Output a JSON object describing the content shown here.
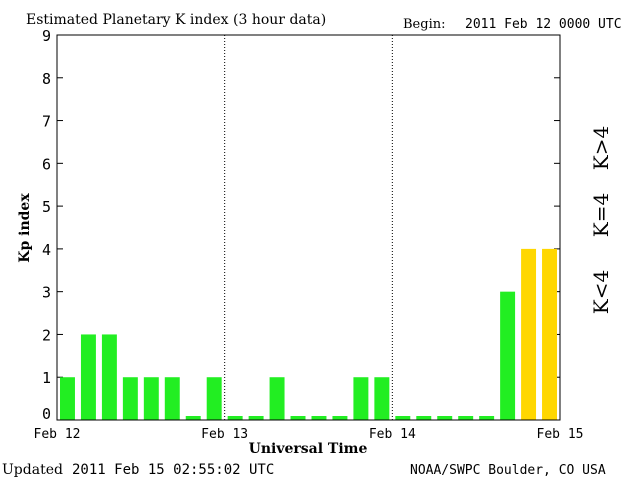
{
  "chart_data": {
    "type": "bar",
    "title": "Estimated Planetary K index (3 hour data)",
    "begin_label": "Begin:",
    "begin_value": "2011 Feb 12 0000 UTC",
    "ylabel": "Kp index",
    "xlabel": "Universal Time",
    "ylim": [
      0,
      9
    ],
    "yticks": [
      "0",
      "1",
      "2",
      "3",
      "4",
      "5",
      "6",
      "7",
      "8",
      "9"
    ],
    "xtick_labels": [
      "Feb 12",
      "Feb 13",
      "Feb 14",
      "Feb 15"
    ],
    "values": [
      1,
      2,
      2,
      1,
      1,
      1,
      0,
      1,
      0,
      0,
      1,
      0,
      0,
      0,
      1,
      1,
      0,
      0,
      0,
      0,
      0,
      3,
      4,
      4
    ],
    "colors": {
      "low": "#22ee22",
      "storm": "#ffd700",
      "high": "#ff2200",
      "axis": "#000000"
    },
    "legend": {
      "high": "K>4",
      "mid": "K=4",
      "low": "K<4"
    },
    "grid": "vertical dotted day separators"
  },
  "footer": {
    "updated_label": "Updated",
    "updated_value": "2011 Feb 15 02:55:02 UTC",
    "source": "NOAA/SWPC Boulder, CO USA"
  }
}
